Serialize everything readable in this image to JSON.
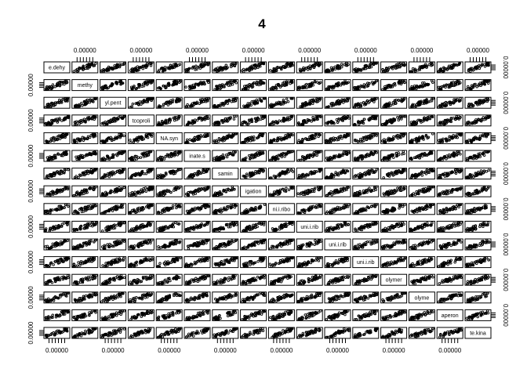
{
  "chart_data": {
    "type": "scatter",
    "chart_kind": "pairs-scatterplot-matrix",
    "title": "4",
    "variables": [
      "e.dehy",
      "methy",
      "yl.pent",
      "tcoproli",
      "NA.syn",
      "inate.s",
      "samin",
      "igation",
      "ni.i.ribo",
      "uni.i.rib",
      "uni.i.rib",
      "uni.i.rib",
      "olymer",
      "olyme",
      "aperon",
      "te.kina"
    ],
    "tick_label": "0.00000",
    "top_ticks": [
      "0.00000",
      "0.00000",
      "0.00000",
      "0.00000",
      "0.00000",
      "0.00000",
      "0.00000",
      "0.00000"
    ],
    "bottom_ticks": [
      "0.00000",
      "0.00000",
      "0.00000",
      "0.00000",
      "0.00000",
      "0.00000",
      "0.00000",
      "0.00000"
    ],
    "left_ticks": [
      "0.00000",
      "0.00000",
      "0.00000",
      "0.00000",
      "0.00000",
      "0.00000",
      "0.00000",
      "0.00000"
    ],
    "right_ticks": [
      "0.00000",
      "0.00000",
      "0.00000",
      "0.00000",
      "0.00000",
      "0.00000",
      "0.00000",
      "0.00000"
    ],
    "panel_relationship": "strong positive linear correlation in every off-diagonal panel",
    "grid": false,
    "legend": "none",
    "colors": {
      "points": "#000000",
      "frame": "#000000",
      "background": "#ffffff"
    }
  }
}
